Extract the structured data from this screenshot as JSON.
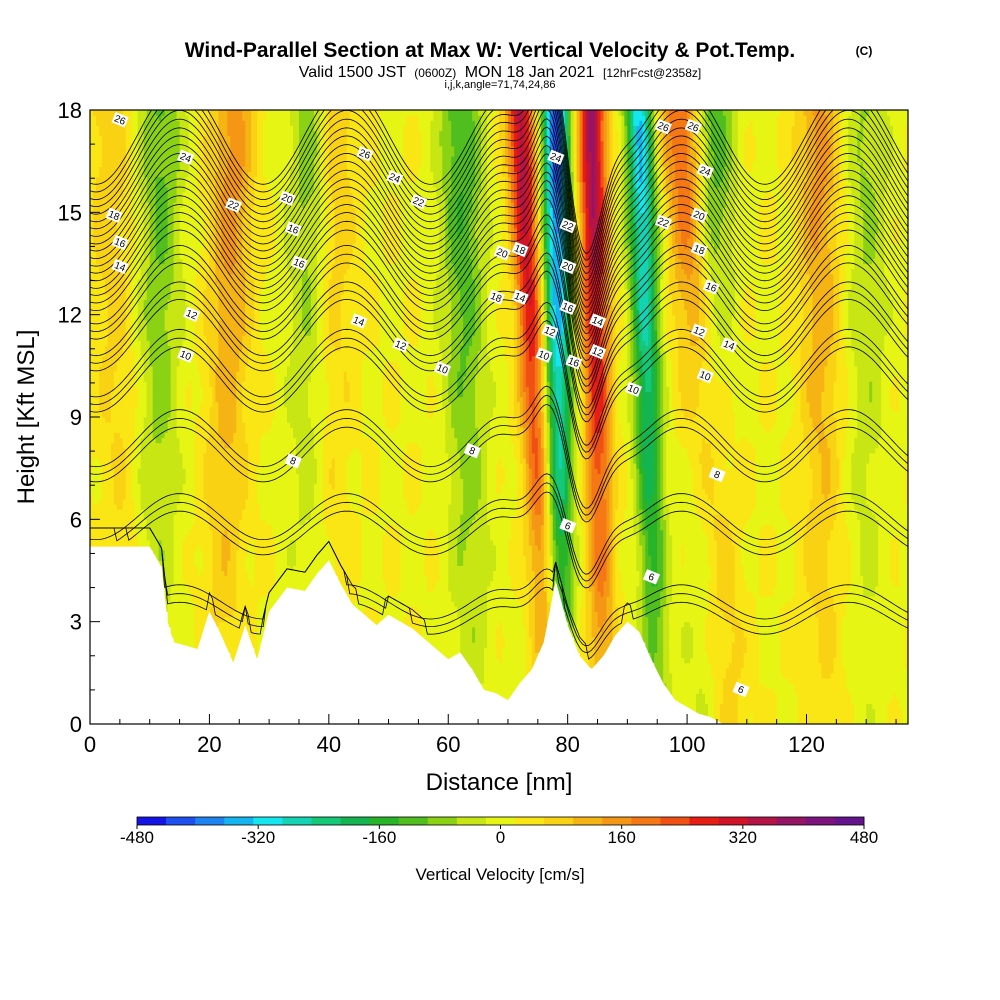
{
  "header": {
    "title": "Wind-Parallel Section at Max W: Vertical Velocity & Pot.Temp.",
    "copyright": "(C)",
    "valid_prefix": "Valid 1500 JST",
    "valid_utc": "(0600Z)",
    "valid_date": "MON 18 Jan 2021",
    "forecast_info": "[12hrFcst@2358z]",
    "indices": "i,j,k,angle=71,74,24,86"
  },
  "chart_data": {
    "type": "heatmap",
    "xlabel": "Distance [nm]",
    "ylabel": "Height [Kft MSL]",
    "xlim": [
      0,
      137
    ],
    "ylim": [
      0,
      18
    ],
    "x_ticks": [
      0,
      20,
      40,
      60,
      80,
      100,
      120
    ],
    "y_ticks": [
      0,
      3,
      6,
      9,
      12,
      15,
      18
    ],
    "colorbar": {
      "label": "Vertical Velocity [cm/s]",
      "range": [
        -480,
        480
      ],
      "tick_values": [
        -480,
        -320,
        -160,
        0,
        160,
        320,
        480
      ],
      "tick_labels": [
        "-480",
        "-320",
        "-160",
        "0",
        "160",
        "320",
        "480"
      ],
      "colors": [
        "#1414e6",
        "#1e50f0",
        "#1e82f0",
        "#14b4f0",
        "#14e6f0",
        "#14d2b4",
        "#14c878",
        "#14b450",
        "#28b428",
        "#50be1e",
        "#8cd214",
        "#c8e614",
        "#e6f514",
        "#fae614",
        "#fad214",
        "#f5b414",
        "#f59614",
        "#f57814",
        "#f05014",
        "#e61e14",
        "#d21428",
        "#b41446",
        "#961464",
        "#7d147d",
        "#64148c"
      ]
    },
    "w_field": {
      "units": "cm/s",
      "updraft_bands": [
        {
          "x_at_top": 3,
          "x_at_base": 6,
          "peak": 70
        },
        {
          "x_at_top": 24,
          "x_at_base": 22,
          "peak": 140
        },
        {
          "x_at_top": 41,
          "x_at_base": 39,
          "peak": 90
        },
        {
          "x_at_top": 72,
          "x_at_base": 77,
          "peak": 330
        },
        {
          "x_at_top": 84,
          "x_at_base": 86,
          "peak": 360
        },
        {
          "x_at_top": 99,
          "x_at_base": 107,
          "peak": 220
        },
        {
          "x_at_top": 122,
          "x_at_base": 123,
          "peak": 130
        }
      ],
      "downdraft_bands": [
        {
          "x_at_top": 12,
          "x_at_base": 11,
          "peak": -120
        },
        {
          "x_at_top": 37,
          "x_at_base": 37,
          "peak": -110
        },
        {
          "x_at_top": 62,
          "x_at_base": 64,
          "peak": -150
        },
        {
          "x_at_top": 78,
          "x_at_base": 79,
          "peak": -430
        },
        {
          "x_at_top": 92,
          "x_at_base": 95,
          "peak": -340
        },
        {
          "x_at_top": 104,
          "x_at_base": 103,
          "peak": -160
        },
        {
          "x_at_top": 130,
          "x_at_base": 130,
          "peak": -80
        }
      ]
    },
    "theta_contours": {
      "units": "degC",
      "levels": [
        6,
        8,
        10,
        12,
        14,
        16,
        18,
        20,
        22,
        24,
        26
      ],
      "labels": [
        {
          "text": "26",
          "x": 5,
          "y": 17.7
        },
        {
          "text": "24",
          "x": 16,
          "y": 16.6
        },
        {
          "text": "18",
          "x": 4,
          "y": 14.9
        },
        {
          "text": "16",
          "x": 5,
          "y": 14.1
        },
        {
          "text": "14",
          "x": 5,
          "y": 13.4
        },
        {
          "text": "22",
          "x": 24,
          "y": 15.2
        },
        {
          "text": "20",
          "x": 33,
          "y": 15.4
        },
        {
          "text": "16",
          "x": 34,
          "y": 14.5
        },
        {
          "text": "16",
          "x": 35,
          "y": 13.5
        },
        {
          "text": "12",
          "x": 17,
          "y": 12.0
        },
        {
          "text": "10",
          "x": 16,
          "y": 10.8
        },
        {
          "text": "26",
          "x": 46,
          "y": 16.7
        },
        {
          "text": "24",
          "x": 51,
          "y": 16.0
        },
        {
          "text": "22",
          "x": 55,
          "y": 15.3
        },
        {
          "text": "14",
          "x": 45,
          "y": 11.8
        },
        {
          "text": "12",
          "x": 52,
          "y": 11.1
        },
        {
          "text": "10",
          "x": 59,
          "y": 10.4
        },
        {
          "text": "8",
          "x": 34,
          "y": 7.7
        },
        {
          "text": "8",
          "x": 64,
          "y": 8.0
        },
        {
          "text": "20",
          "x": 69,
          "y": 13.8
        },
        {
          "text": "18",
          "x": 72,
          "y": 13.9
        },
        {
          "text": "18",
          "x": 68,
          "y": 12.5
        },
        {
          "text": "14",
          "x": 72,
          "y": 12.5
        },
        {
          "text": "24",
          "x": 78,
          "y": 16.6
        },
        {
          "text": "22",
          "x": 80,
          "y": 14.6
        },
        {
          "text": "20",
          "x": 80,
          "y": 13.4
        },
        {
          "text": "16",
          "x": 80,
          "y": 12.2
        },
        {
          "text": "12",
          "x": 77,
          "y": 11.5
        },
        {
          "text": "10",
          "x": 76,
          "y": 10.8
        },
        {
          "text": "16",
          "x": 81,
          "y": 10.6
        },
        {
          "text": "14",
          "x": 85,
          "y": 11.8
        },
        {
          "text": "12",
          "x": 85,
          "y": 10.9
        },
        {
          "text": "10",
          "x": 91,
          "y": 9.8
        },
        {
          "text": "26",
          "x": 96,
          "y": 17.5
        },
        {
          "text": "26",
          "x": 101,
          "y": 17.5
        },
        {
          "text": "24",
          "x": 103,
          "y": 16.2
        },
        {
          "text": "22",
          "x": 96,
          "y": 14.7
        },
        {
          "text": "20",
          "x": 102,
          "y": 14.9
        },
        {
          "text": "18",
          "x": 102,
          "y": 13.9
        },
        {
          "text": "16",
          "x": 104,
          "y": 12.8
        },
        {
          "text": "12",
          "x": 102,
          "y": 11.5
        },
        {
          "text": "14",
          "x": 107,
          "y": 11.1
        },
        {
          "text": "10",
          "x": 103,
          "y": 10.2
        },
        {
          "text": "8",
          "x": 105,
          "y": 7.3
        },
        {
          "text": "6",
          "x": 80,
          "y": 5.8
        },
        {
          "text": "6",
          "x": 94,
          "y": 4.3
        },
        {
          "text": "6",
          "x": 109,
          "y": 1.0
        }
      ]
    },
    "terrain": {
      "units": "Kft MSL",
      "x": [
        0,
        5,
        10,
        12,
        13,
        14,
        18,
        20,
        22,
        24,
        26,
        28,
        30,
        33,
        36,
        38,
        40,
        42,
        44,
        46,
        48,
        50,
        54,
        58,
        60,
        62,
        64,
        66,
        68,
        70,
        72,
        74,
        76,
        78,
        80,
        82,
        84,
        86,
        88,
        90,
        92,
        94,
        96,
        98,
        100,
        102,
        104,
        106,
        108,
        110,
        115,
        120,
        125,
        130,
        137
      ],
      "height": [
        5.2,
        5.2,
        5.2,
        4.6,
        3.0,
        2.4,
        2.2,
        3.3,
        2.6,
        1.8,
        2.9,
        1.9,
        3.3,
        4.0,
        3.9,
        4.4,
        4.8,
        4.1,
        3.5,
        3.2,
        2.9,
        3.2,
        2.8,
        2.2,
        1.9,
        2.1,
        1.6,
        1.0,
        0.9,
        0.7,
        1.2,
        1.6,
        2.4,
        4.2,
        2.9,
        2.0,
        1.6,
        2.0,
        2.6,
        3.0,
        2.7,
        1.9,
        1.2,
        0.7,
        0.5,
        0.3,
        0.2,
        0.0,
        0.0,
        0.0,
        0.0,
        0.0,
        0.0,
        0.0,
        0.0
      ]
    }
  }
}
